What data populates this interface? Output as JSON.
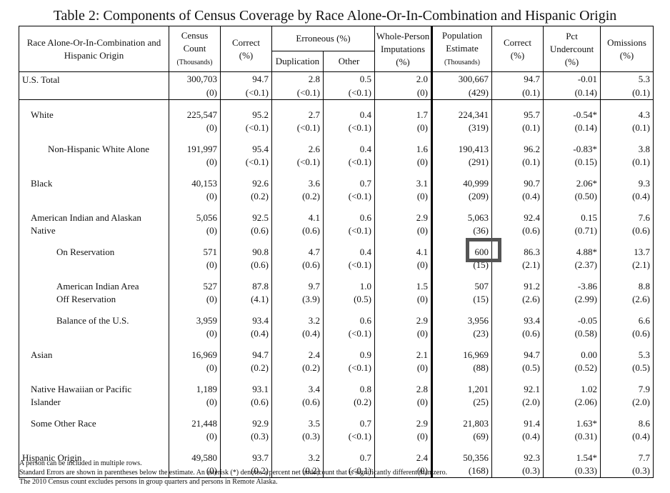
{
  "title": "Table 2: Components of Census Coverage by Race Alone-Or-In-Combination and Hispanic Origin",
  "headers": {
    "group": "Race Alone-Or-In-Combination and Hispanic Origin",
    "census_count": "Census Count",
    "census_count_unit": "(Thousands)",
    "correct": "Correct",
    "pct": "(%)",
    "erroneous": "Erroneous (%)",
    "duplication": "Duplication",
    "other": "Other",
    "whole_person": "Whole-Person Imputations",
    "population_estimate": "Population Estimate",
    "pop_unit": "(Thousands)",
    "correct2": "Correct",
    "pct_undercount": "Pct Undercount",
    "omissions": "Omissions"
  },
  "rows": [
    {
      "label": "U.S. Total",
      "indent": 0,
      "est": [
        "300,703",
        "94.7",
        "2.8",
        "0.5",
        "2.0",
        "300,667",
        "94.7",
        "-0.01",
        "5.3"
      ],
      "se": [
        "(0)",
        "(<0.1)",
        "(<0.1)",
        "(<0.1)",
        "(0)",
        "(429)",
        "(0.1)",
        "(0.14)",
        "(0.1)"
      ]
    },
    {
      "label": "White",
      "indent": 1,
      "est": [
        "225,547",
        "95.2",
        "2.7",
        "0.4",
        "1.7",
        "224,341",
        "95.7",
        "-0.54*",
        "4.3"
      ],
      "se": [
        "(0)",
        "(<0.1)",
        "(<0.1)",
        "(<0.1)",
        "(0)",
        "(319)",
        "(0.1)",
        "(0.14)",
        "(0.1)"
      ]
    },
    {
      "label": "Non-Hispanic White Alone",
      "indent": 2,
      "est": [
        "191,997",
        "95.4",
        "2.6",
        "0.4",
        "1.6",
        "190,413",
        "96.2",
        "-0.83*",
        "3.8"
      ],
      "se": [
        "(0)",
        "(<0.1)",
        "(<0.1)",
        "(<0.1)",
        "(0)",
        "(291)",
        "(0.1)",
        "(0.15)",
        "(0.1)"
      ]
    },
    {
      "label": "Black",
      "indent": 1,
      "est": [
        "40,153",
        "92.6",
        "3.6",
        "0.7",
        "3.1",
        "40,999",
        "90.7",
        "2.06*",
        "9.3"
      ],
      "se": [
        "(0)",
        "(0.2)",
        "(0.2)",
        "(<0.1)",
        "(0)",
        "(209)",
        "(0.4)",
        "(0.50)",
        "(0.4)"
      ]
    },
    {
      "label": "American Indian and Alaskan",
      "label2": "Native",
      "indent": 1,
      "est": [
        "5,056",
        "92.5",
        "4.1",
        "0.6",
        "2.9",
        "5,063",
        "92.4",
        "0.15",
        "7.6"
      ],
      "se": [
        "(0)",
        "(0.6)",
        "(0.6)",
        "(<0.1)",
        "(0)",
        "(36)",
        "(0.6)",
        "(0.71)",
        "(0.6)"
      ]
    },
    {
      "label": "On Reservation",
      "indent": 3,
      "est": [
        "571",
        "90.8",
        "4.7",
        "0.4",
        "4.1",
        "600",
        "86.3",
        "4.88*",
        "13.7"
      ],
      "se": [
        "(0)",
        "(0.6)",
        "(0.6)",
        "(<0.1)",
        "(0)",
        "(15)",
        "(2.1)",
        "(2.37)",
        "(2.1)"
      ]
    },
    {
      "label": "American Indian Area",
      "label2": "Off Reservation",
      "indent": 3,
      "est": [
        "527",
        "87.8",
        "9.7",
        "1.0",
        "1.5",
        "507",
        "91.2",
        "-3.86",
        "8.8"
      ],
      "se": [
        "(0)",
        "(4.1)",
        "(3.9)",
        "(0.5)",
        "(0)",
        "(15)",
        "(2.6)",
        "(2.99)",
        "(2.6)"
      ]
    },
    {
      "label": "Balance of the U.S.",
      "indent": 3,
      "est": [
        "3,959",
        "93.4",
        "3.2",
        "0.6",
        "2.9",
        "3,956",
        "93.4",
        "-0.05",
        "6.6"
      ],
      "se": [
        "(0)",
        "(0.4)",
        "(0.4)",
        "(<0.1)",
        "(0)",
        "(23)",
        "(0.6)",
        "(0.58)",
        "(0.6)"
      ]
    },
    {
      "label": "Asian",
      "indent": 1,
      "est": [
        "16,969",
        "94.7",
        "2.4",
        "0.9",
        "2.1",
        "16,969",
        "94.7",
        "0.00",
        "5.3"
      ],
      "se": [
        "(0)",
        "(0.2)",
        "(0.2)",
        "(<0.1)",
        "(0)",
        "(88)",
        "(0.5)",
        "(0.52)",
        "(0.5)"
      ]
    },
    {
      "label": "Native Hawaiian or Pacific",
      "label2": "Islander",
      "indent": 1,
      "est": [
        "1,189",
        "93.1",
        "3.4",
        "0.8",
        "2.8",
        "1,201",
        "92.1",
        "1.02",
        "7.9"
      ],
      "se": [
        "(0)",
        "(0.6)",
        "(0.6)",
        "(0.2)",
        "(0)",
        "(25)",
        "(2.0)",
        "(2.06)",
        "(2.0)"
      ]
    },
    {
      "label": "Some Other Race",
      "indent": 1,
      "est": [
        "21,448",
        "92.9",
        "3.5",
        "0.7",
        "2.9",
        "21,803",
        "91.4",
        "1.63*",
        "8.6"
      ],
      "se": [
        "(0)",
        "(0.3)",
        "(0.3)",
        "(<0.1)",
        "(0)",
        "(69)",
        "(0.4)",
        "(0.31)",
        "(0.4)"
      ]
    },
    {
      "label": "Hispanic Origin",
      "indent": 0,
      "est": [
        "49,580",
        "93.7",
        "3.2",
        "0.7",
        "2.4",
        "50,356",
        "92.3",
        "1.54*",
        "7.7"
      ],
      "se": [
        "(0)",
        "(0.2)",
        "(0.2)",
        "(<0.1)",
        "(0)",
        "(168)",
        "(0.3)",
        "(0.33)",
        "(0.3)"
      ]
    }
  ],
  "notes": [
    "A person can be included in multiple rows.",
    "Standard Errors are shown in parentheses below the estimate.  An asterisk (*) denotes a percent net undercount that is significantly different than zero.",
    "The 2010 Census count excludes persons in group quarters and persons in Remote Alaska."
  ]
}
